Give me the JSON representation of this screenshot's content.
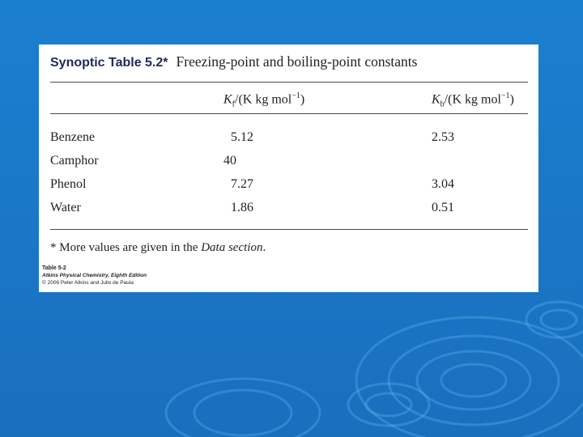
{
  "background": {
    "color": "#1a78c8"
  },
  "table": {
    "label": "Synoptic Table 5.2*",
    "title": "Freezing-point and boiling-point constants",
    "columns": [
      {
        "symbol": "K",
        "subscript": "f",
        "unit": "/(K kg mol",
        "exp": "−1",
        "close": ")"
      },
      {
        "symbol": "K",
        "subscript": "b",
        "unit": "/(K kg mol",
        "exp": "−1",
        "close": ")"
      }
    ],
    "rows": [
      {
        "name": "Benzene",
        "kf": "5.12",
        "kb": "2.53"
      },
      {
        "name": "Camphor",
        "kf": "40",
        "kb": ""
      },
      {
        "name": "Phenol",
        "kf": "7.27",
        "kb": "3.04"
      },
      {
        "name": "Water",
        "kf": "1.86",
        "kb": "0.51"
      }
    ],
    "footnote_pre": "* More values are given in the ",
    "footnote_italic": "Data section",
    "footnote_post": "."
  },
  "credits": {
    "line1": "Table 5-2",
    "line2": "Atkins Physical Chemistry, Eighth Edition",
    "line3": "© 2006 Peter Atkins and Julio de Paula"
  }
}
